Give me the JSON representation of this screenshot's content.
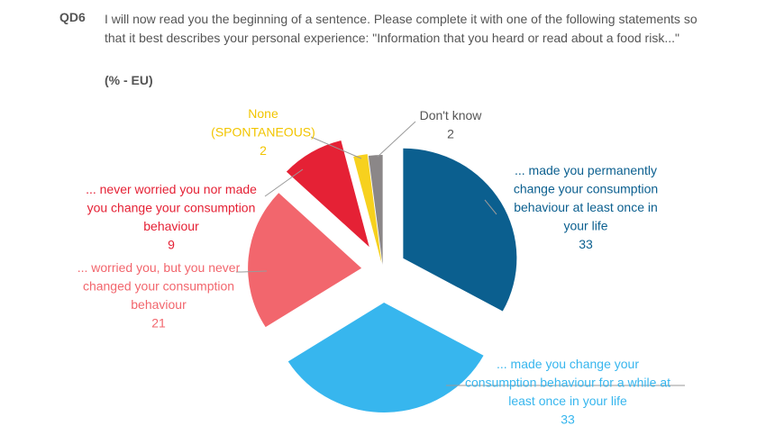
{
  "question": {
    "code": "QD6",
    "text": "I will now read you the beginning of a sentence. Please complete it with one of the following statements so that it best describes your personal experience: \"Information that you heard or read about a food risk...\"",
    "unit": "(% - EU)"
  },
  "chart_data": {
    "type": "pie",
    "exploded": true,
    "slices": [
      {
        "label_lines": [
          "... made you permanently",
          "change your consumption",
          "behaviour at least once in",
          "your life"
        ],
        "value": 33,
        "color": "#0b5f8f"
      },
      {
        "label_lines": [
          "... made you change your",
          "consumption behaviour for a while at",
          "least once in your life"
        ],
        "value": 33,
        "color": "#37b6ee"
      },
      {
        "label_lines": [
          "... worried you, but you never",
          "changed your consumption",
          "behaviour"
        ],
        "value": 21,
        "color": "#f2666d"
      },
      {
        "label_lines": [
          "... never worried you nor made",
          "you change your consumption",
          "behaviour"
        ],
        "value": 9,
        "color": "#e52135"
      },
      {
        "label_lines": [
          "None",
          "(SPONTANEOUS)"
        ],
        "value": 2,
        "color": "#f7d11e",
        "label_color": "#f2c500"
      },
      {
        "label_lines": [
          "Don't know"
        ],
        "value": 2,
        "color": "#8b8788",
        "label_color": "#555555"
      }
    ]
  }
}
